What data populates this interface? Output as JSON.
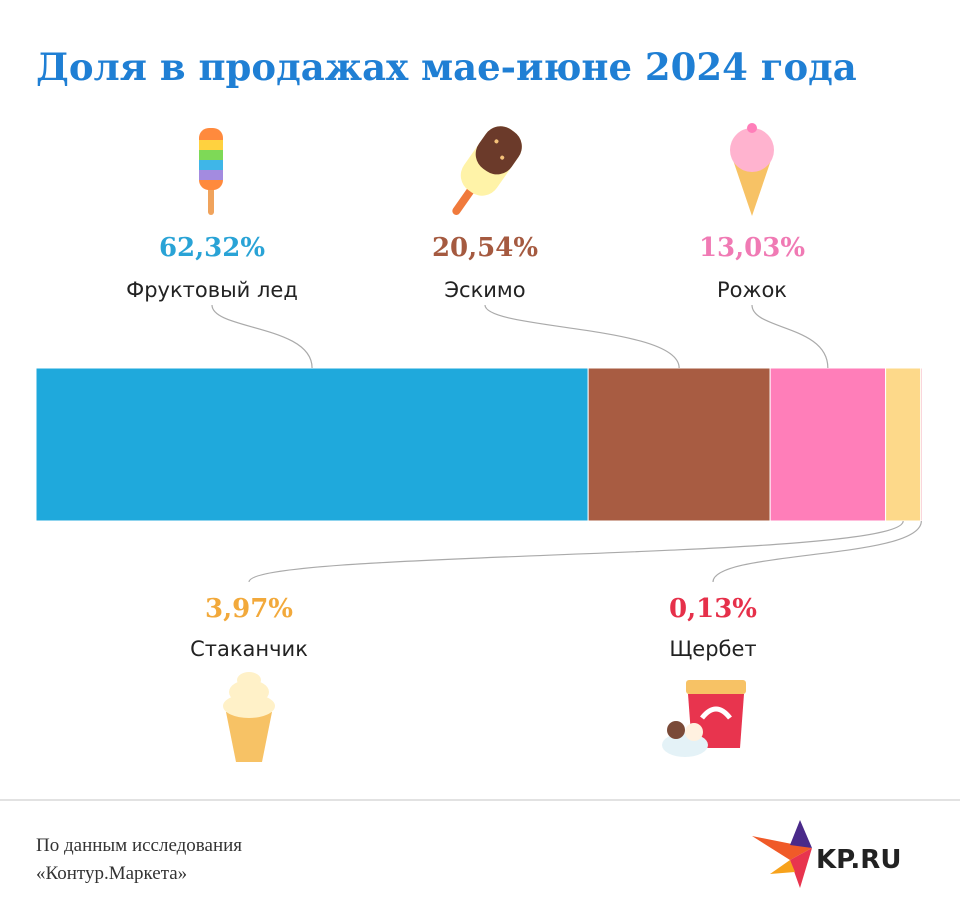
{
  "chart_data": {
    "type": "stacked-bar",
    "title": "Доля в продажах мае-июне 2024 года",
    "categories": [
      "Фруктовый лед",
      "Эскимо",
      "Рожок",
      "Стаканчик",
      "Щербет"
    ],
    "values": [
      62.32,
      20.54,
      13.03,
      3.97,
      0.13
    ],
    "value_labels": [
      "62,32%",
      "20,54%",
      "13,03%",
      "3,97%",
      "0,13%"
    ],
    "colors": [
      "#1fa9dc",
      "#a85c42",
      "#ff7eb9",
      "#fdd98a",
      "#e8344e"
    ],
    "label_colors": [
      "#29a3d6",
      "#a55a40",
      "#f07ab4",
      "#f2a93b",
      "#e6304a"
    ],
    "xlim": [
      0,
      100
    ]
  },
  "footer": {
    "source": [
      "По данным исследования",
      "«Контур.Маркета»"
    ],
    "logo": "KP.RU"
  }
}
